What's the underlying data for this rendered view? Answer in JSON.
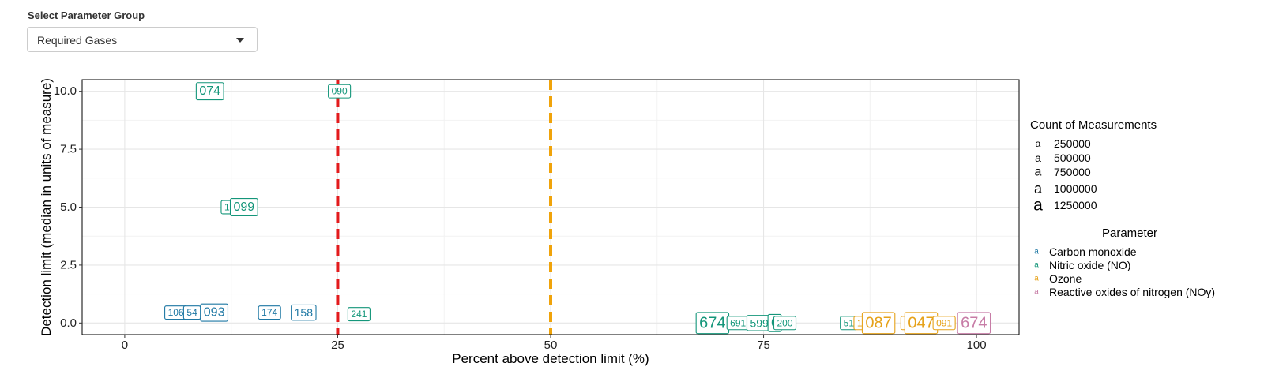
{
  "control": {
    "label": "Select Parameter Group",
    "selected": "Required Gases"
  },
  "chart_data": {
    "type": "scatter",
    "xlabel": "Percent above detection limit (%)",
    "ylabel": "Detection limit (median in units of measure)",
    "xlim": [
      -5,
      105
    ],
    "ylim": [
      -0.5,
      10.5
    ],
    "x_ticks": [
      0,
      25,
      50,
      75,
      100
    ],
    "x_tick_labels": [
      "0",
      "25",
      "50",
      "75",
      "100"
    ],
    "y_ticks": [
      0,
      2.5,
      5,
      7.5,
      10
    ],
    "y_tick_labels": [
      "0.0",
      "2.5",
      "5.0",
      "7.5",
      "10.0"
    ],
    "grid": true,
    "reference_lines": [
      {
        "x": 25,
        "color": "#e31a1c",
        "style": "dashed"
      },
      {
        "x": 50,
        "color": "#f0a30a",
        "style": "dashed"
      }
    ],
    "size_legend": {
      "title": "Count of Measurements",
      "entries": [
        "250000",
        "500000",
        "750000",
        "1000000",
        "1250000"
      ],
      "glyph": "a"
    },
    "color_legend": {
      "title": "Parameter",
      "glyph": "a",
      "entries": [
        {
          "label": "Carbon monoxide",
          "color": "#1f78a4"
        },
        {
          "label": "Nitric oxide (NO)",
          "color": "#14967a"
        },
        {
          "label": "Ozone",
          "color": "#e6a21a"
        },
        {
          "label": "Reactive oxides of nitrogen (NOy)",
          "color": "#c77ca6"
        }
      ]
    },
    "points": [
      {
        "label": "074",
        "x": 10,
        "y": 10.0,
        "series": 1,
        "size": 2
      },
      {
        "label": "090",
        "x": 25.2,
        "y": 10.0,
        "series": 1,
        "size": 0
      },
      {
        "label": "1",
        "x": 12,
        "y": 5.0,
        "series": 1,
        "size": 0
      },
      {
        "label": "099",
        "x": 14,
        "y": 5.0,
        "series": 1,
        "size": 2
      },
      {
        "label": "106",
        "x": 6,
        "y": 0.45,
        "series": 0,
        "size": 0
      },
      {
        "label": "54",
        "x": 7.9,
        "y": 0.45,
        "series": 0,
        "size": 0
      },
      {
        "label": "093",
        "x": 10.5,
        "y": 0.45,
        "series": 0,
        "size": 2
      },
      {
        "label": "174",
        "x": 17,
        "y": 0.45,
        "series": 0,
        "size": 0
      },
      {
        "label": "158",
        "x": 21,
        "y": 0.45,
        "series": 0,
        "size": 1
      },
      {
        "label": "241",
        "x": 27.5,
        "y": 0.38,
        "series": 1,
        "size": 0
      },
      {
        "label": "674",
        "x": 69,
        "y": 0.0,
        "series": 1,
        "size": 4
      },
      {
        "label": "691",
        "x": 72,
        "y": 0.0,
        "series": 1,
        "size": 0
      },
      {
        "label": "599",
        "x": 74.5,
        "y": 0.0,
        "series": 1,
        "size": 1
      },
      {
        "label": "0",
        "x": 76.3,
        "y": 0.0,
        "series": 1,
        "size": 2
      },
      {
        "label": "200",
        "x": 77.5,
        "y": 0.0,
        "series": 1,
        "size": 0
      },
      {
        "label": "51",
        "x": 85,
        "y": 0.0,
        "series": 1,
        "size": 0
      },
      {
        "label": "18",
        "x": 86.6,
        "y": 0.0,
        "series": 2,
        "size": 0
      },
      {
        "label": "087",
        "x": 88.5,
        "y": 0.0,
        "series": 2,
        "size": 4
      },
      {
        "label": "9",
        "x": 91.8,
        "y": 0.0,
        "series": 2,
        "size": 0
      },
      {
        "label": "047",
        "x": 93.5,
        "y": 0.0,
        "series": 2,
        "size": 4
      },
      {
        "label": "091",
        "x": 96.2,
        "y": 0.0,
        "series": 2,
        "size": 0
      },
      {
        "label": "674",
        "x": 99.7,
        "y": 0.0,
        "series": 3,
        "size": 4
      }
    ]
  }
}
